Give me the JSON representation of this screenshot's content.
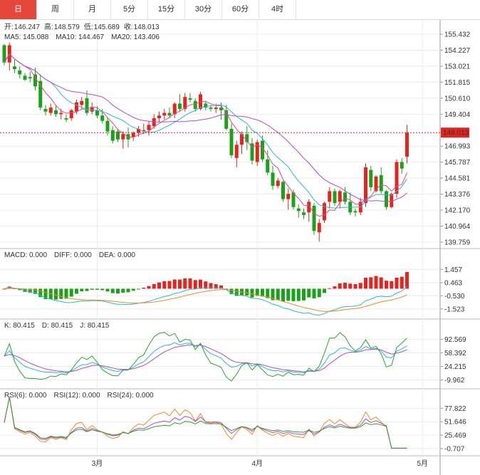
{
  "tabs": [
    {
      "label": "日",
      "active": true
    },
    {
      "label": "周",
      "active": false
    },
    {
      "label": "月",
      "active": false
    },
    {
      "label": "5分",
      "active": false
    },
    {
      "label": "15分",
      "active": false
    },
    {
      "label": "30分",
      "active": false
    },
    {
      "label": "60分",
      "active": false
    },
    {
      "label": "4时",
      "active": false
    }
  ],
  "ohlc_info": {
    "open_label": "开:",
    "open": "146.247",
    "high_label": "高:",
    "high": "148.579",
    "low_label": "低:",
    "low": "145.689",
    "close_label": "收:",
    "close": "148.013"
  },
  "ma_info": [
    {
      "label": "MA5: 145.088",
      "color": "#e7468a"
    },
    {
      "label": "MA10: 144.467",
      "color": "#2bb7d0"
    },
    {
      "label": "MA20: 143.406",
      "color": "#b34bc8"
    }
  ],
  "macd_info": [
    {
      "label": "MACD: 0.000",
      "color": "#e7463a"
    },
    {
      "label": "DIFF: 0.000",
      "color": "#2bb7d0"
    },
    {
      "label": "DEA: 0.000",
      "color": "#f08a24"
    }
  ],
  "kdj_info": [
    {
      "label": "K: 80.415",
      "color": "#2bb7d0"
    },
    {
      "label": "D: 80.415",
      "color": "#b34bc8"
    },
    {
      "label": "J: 80.415",
      "color": "#2aa52a"
    }
  ],
  "rsi_info": [
    {
      "label": "RSI(6): 0.000",
      "color": "#f08a24"
    },
    {
      "label": "RSI(12): 0.000",
      "color": "#b34bc8"
    },
    {
      "label": "RSI(24): 0.000",
      "color": "#2aa52a"
    }
  ],
  "colors": {
    "up": "#e7231e",
    "down": "#1aa31a",
    "grid": "#ececec",
    "price_marker": "#e7231e"
  },
  "chart_data": [
    {
      "type": "candlestick",
      "title": "",
      "y_ticks": [
        "155.432",
        "154.227",
        "153.021",
        "151.815",
        "150.610",
        "149.404",
        "146.993",
        "145.787",
        "144.581",
        "143.376",
        "142.170",
        "140.964",
        "139.759"
      ],
      "ylim": [
        139.759,
        155.432
      ],
      "last_price": "148.013",
      "x_ticks": [
        {
          "label": "3月",
          "index": 18
        },
        {
          "label": "4月",
          "index": 49
        },
        {
          "label": "5月",
          "index": 81
        }
      ],
      "candles": [
        [
          154.6,
          154.7,
          153.1,
          153.3
        ],
        [
          153.3,
          154.8,
          152.7,
          154.6
        ],
        [
          153.0,
          153.5,
          152.5,
          152.8
        ],
        [
          152.7,
          153.0,
          152.1,
          152.4
        ],
        [
          152.3,
          152.5,
          151.9,
          152.0
        ],
        [
          152.2,
          152.6,
          151.8,
          152.1
        ],
        [
          152.4,
          152.9,
          151.2,
          151.5
        ],
        [
          151.9,
          152.4,
          149.7,
          149.9
        ],
        [
          149.8,
          150.1,
          149.3,
          149.6
        ],
        [
          149.5,
          150.2,
          149.3,
          149.9
        ],
        [
          149.7,
          150.1,
          149.2,
          149.4
        ],
        [
          149.4,
          149.8,
          149.0,
          149.5
        ],
        [
          149.1,
          149.4,
          148.8,
          149.0
        ],
        [
          149.1,
          149.8,
          148.9,
          149.7
        ],
        [
          149.6,
          150.5,
          149.4,
          150.3
        ],
        [
          150.1,
          150.7,
          149.8,
          150.4
        ],
        [
          150.6,
          151.2,
          149.3,
          149.5
        ],
        [
          149.6,
          150.3,
          149.4,
          149.9
        ],
        [
          149.7,
          150.0,
          149.1,
          149.3
        ],
        [
          149.3,
          149.8,
          148.7,
          148.9
        ],
        [
          148.9,
          149.2,
          147.8,
          148.1
        ],
        [
          148.2,
          148.5,
          147.2,
          147.4
        ],
        [
          148.1,
          148.3,
          147.3,
          147.5
        ],
        [
          147.5,
          148.1,
          146.8,
          147.9
        ],
        [
          147.9,
          148.4,
          146.9,
          147.5
        ],
        [
          147.7,
          148.1,
          147.4,
          148.0
        ],
        [
          148.0,
          148.5,
          147.7,
          148.3
        ],
        [
          148.1,
          148.7,
          147.9,
          148.2
        ],
        [
          148.2,
          148.9,
          147.8,
          148.6
        ],
        [
          148.5,
          149.4,
          148.3,
          149.1
        ],
        [
          149.1,
          149.6,
          148.8,
          149.3
        ],
        [
          149.3,
          149.8,
          149.0,
          149.5
        ],
        [
          149.5,
          149.9,
          149.1,
          149.3
        ],
        [
          149.4,
          150.3,
          149.1,
          150.2
        ],
        [
          150.2,
          150.9,
          149.6,
          149.8
        ],
        [
          149.8,
          151.0,
          149.6,
          150.7
        ],
        [
          150.6,
          151.0,
          150.3,
          150.5
        ],
        [
          150.4,
          150.6,
          149.6,
          149.8
        ],
        [
          149.8,
          151.1,
          149.7,
          150.9
        ],
        [
          150.2,
          150.4,
          149.7,
          149.9
        ],
        [
          149.9,
          150.1,
          149.6,
          149.8
        ],
        [
          149.8,
          150.2,
          149.5,
          149.9
        ],
        [
          149.9,
          150.3,
          149.0,
          149.7
        ],
        [
          149.7,
          150.1,
          148.2,
          148.3
        ],
        [
          148.3,
          148.7,
          146.1,
          146.3
        ],
        [
          146.1,
          147.4,
          145.4,
          147.1
        ],
        [
          147.1,
          148.1,
          146.4,
          147.9
        ],
        [
          147.9,
          148.5,
          146.7,
          147.3
        ],
        [
          147.2,
          147.6,
          145.6,
          145.9
        ],
        [
          145.8,
          147.5,
          145.5,
          147.3
        ],
        [
          147.4,
          147.8,
          145.8,
          146.0
        ],
        [
          146.0,
          146.7,
          144.8,
          145.0
        ],
        [
          145.0,
          145.5,
          143.7,
          144.0
        ],
        [
          144.0,
          144.6,
          143.8,
          144.4
        ],
        [
          144.3,
          144.4,
          142.8,
          143.0
        ],
        [
          143.0,
          143.8,
          142.2,
          143.4
        ],
        [
          143.5,
          143.7,
          142.2,
          142.4
        ],
        [
          142.3,
          142.6,
          141.6,
          142.1
        ],
        [
          142.0,
          142.3,
          141.5,
          141.8
        ],
        [
          142.0,
          143.0,
          141.3,
          142.8
        ],
        [
          142.5,
          142.7,
          140.3,
          140.6
        ],
        [
          140.5,
          141.5,
          139.8,
          141.2
        ],
        [
          141.4,
          142.8,
          141.2,
          142.7
        ],
        [
          142.8,
          143.9,
          142.3,
          143.6
        ],
        [
          143.6,
          143.8,
          142.5,
          142.7
        ],
        [
          142.8,
          143.7,
          142.3,
          143.6
        ],
        [
          143.5,
          143.9,
          142.6,
          142.8
        ],
        [
          142.8,
          143.5,
          141.8,
          142.0
        ],
        [
          142.1,
          142.3,
          141.7,
          142.0
        ],
        [
          142.0,
          143.1,
          141.8,
          142.8
        ],
        [
          142.7,
          145.7,
          142.4,
          145.4
        ],
        [
          145.2,
          145.5,
          143.6,
          143.9
        ],
        [
          143.6,
          144.8,
          143.5,
          144.7
        ],
        [
          144.8,
          145.4,
          143.4,
          143.6
        ],
        [
          143.6,
          143.7,
          142.2,
          142.4
        ],
        [
          142.4,
          143.5,
          142.3,
          143.4
        ],
        [
          143.4,
          146.0,
          143.1,
          145.8
        ],
        [
          145.8,
          146.1,
          144.9,
          145.3
        ],
        [
          146.2,
          148.6,
          145.7,
          148.0
        ]
      ]
    },
    {
      "type": "bar+line",
      "indicator": "MACD",
      "y_ticks": [
        "1.457",
        "0.463",
        "-0.530",
        "-1.523"
      ],
      "ylim": [
        -1.75,
        1.85
      ]
    },
    {
      "type": "line",
      "indicator": "KDJ",
      "y_ticks": [
        "92.569",
        "58.392",
        "24.215",
        "-9.962"
      ],
      "ylim": [
        -18,
        108
      ]
    },
    {
      "type": "line",
      "indicator": "RSI",
      "y_ticks": [
        "77.822",
        "51.646",
        "25.469",
        "-0.707"
      ],
      "ylim": [
        -5,
        88
      ]
    }
  ]
}
